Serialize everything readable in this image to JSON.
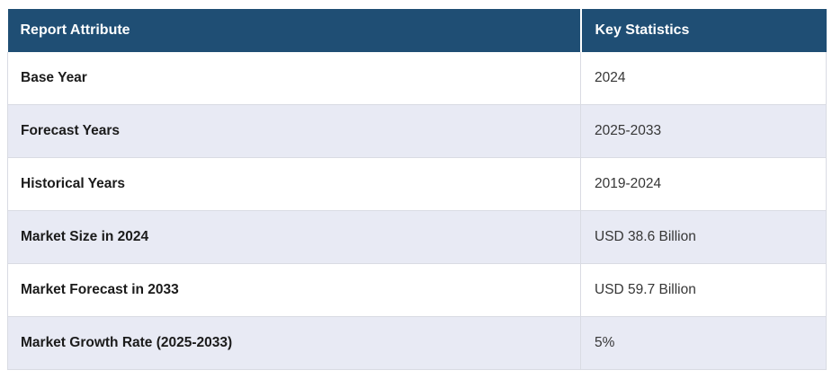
{
  "table": {
    "columns": [
      "Report Attribute",
      "Key Statistics"
    ],
    "rows": [
      {
        "attribute": "Base Year",
        "value": "2024"
      },
      {
        "attribute": "Forecast Years",
        "value": "2025-2033"
      },
      {
        "attribute": "Historical Years",
        "value": "2019-2024"
      },
      {
        "attribute": "Market Size in 2024",
        "value": "USD 38.6 Billion"
      },
      {
        "attribute": "Market Forecast in 2033",
        "value": "USD 59.7 Billion"
      },
      {
        "attribute": "Market Growth Rate (2025-2033)",
        "value": "5%"
      }
    ]
  },
  "colors": {
    "header_background": "#1F4E74",
    "header_text": "#FFFFFF",
    "stripe_background": "#E8EAF4",
    "row_background": "#FFFFFF",
    "border": "#D9DBE3",
    "attribute_text": "#1B1B1B",
    "value_text": "#363636"
  },
  "chart_data": {
    "type": "table",
    "columns": [
      "Report Attribute",
      "Key Statistics"
    ],
    "rows": [
      [
        "Base Year",
        "2024"
      ],
      [
        "Forecast Years",
        "2025-2033"
      ],
      [
        "Historical Years",
        "2019-2024"
      ],
      [
        "Market Size in 2024",
        "USD 38.6 Billion"
      ],
      [
        "Market Forecast in 2033",
        "USD 59.7 Billion"
      ],
      [
        "Market Growth Rate (2025-2033)",
        "5%"
      ]
    ],
    "title": "",
    "legend": "none",
    "grid": "row-borders",
    "striped_row_indices": [
      1,
      3,
      5
    ]
  }
}
